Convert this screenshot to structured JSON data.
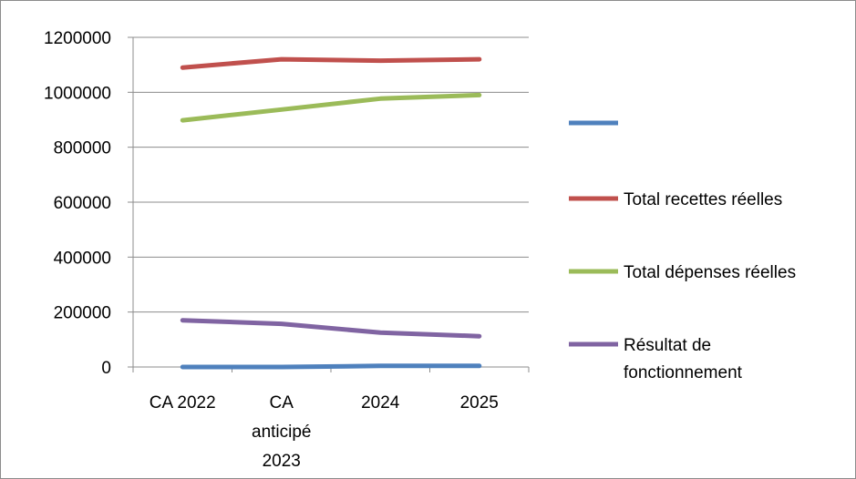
{
  "chart_data": {
    "type": "line",
    "title": "",
    "xlabel": "",
    "ylabel": "",
    "categories": [
      [
        "CA 2022"
      ],
      [
        "CA",
        "anticipé",
        "2023"
      ],
      [
        "2024"
      ],
      [
        "2025"
      ]
    ],
    "ylim": [
      0,
      1200000
    ],
    "yticks": [
      "1200000",
      "1000000",
      "800000",
      "600000",
      "400000",
      "200000",
      "0"
    ],
    "grid": "horizontal",
    "legend_position": "right",
    "series": [
      {
        "name": "",
        "color": "#4f81bd",
        "values": [
          0,
          0,
          4000,
          4000
        ]
      },
      {
        "name": "Total recettes réelles",
        "color": "#c0504d",
        "values": [
          1090000,
          1120000,
          1115000,
          1120000
        ]
      },
      {
        "name": "Total dépenses réelles",
        "color": "#9bbb59",
        "values": [
          898000,
          937000,
          977000,
          990000
        ]
      },
      {
        "name": [
          "Résultat de",
          "fonctionnement"
        ],
        "color": "#8064a2",
        "values": [
          170000,
          157000,
          125000,
          112000
        ]
      }
    ]
  }
}
